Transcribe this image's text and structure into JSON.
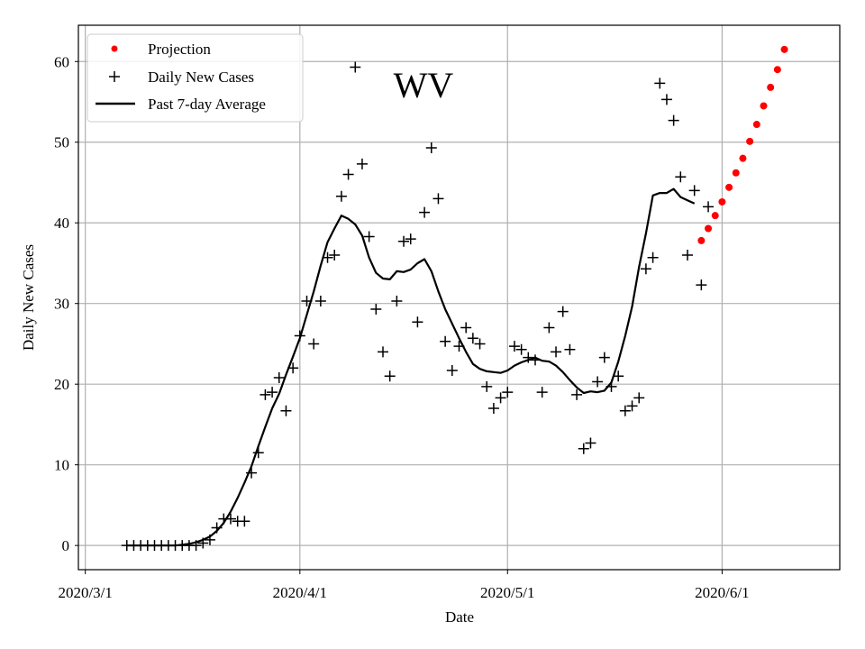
{
  "chart_data": {
    "type": "line",
    "title": "WV",
    "xlabel": "Date",
    "ylabel": "Daily New Cases",
    "xlim": [
      -1,
      109
    ],
    "ylim": [
      -3,
      64.5
    ],
    "grid": true,
    "legend_position": "top-left",
    "x_ticks": [
      {
        "day": 0,
        "label": "2020/3/1"
      },
      {
        "day": 31,
        "label": "2020/4/1"
      },
      {
        "day": 61,
        "label": "2020/5/1"
      },
      {
        "day": 92,
        "label": "2020/6/1"
      }
    ],
    "y_ticks": [
      0,
      10,
      20,
      30,
      40,
      50,
      60
    ],
    "legend": [
      "Projection",
      "Daily New Cases",
      "Past 7-day Average"
    ],
    "colors": {
      "projection": "#ff0000",
      "daily": "#000000",
      "average": "#000000"
    },
    "series": [
      {
        "name": "Daily New Cases",
        "marker": "plus",
        "points": [
          [
            6,
            0
          ],
          [
            7,
            0
          ],
          [
            8,
            0
          ],
          [
            9,
            0
          ],
          [
            10,
            0
          ],
          [
            11,
            0
          ],
          [
            12,
            0
          ],
          [
            13,
            0
          ],
          [
            14,
            0
          ],
          [
            15,
            0
          ],
          [
            16,
            0
          ],
          [
            17,
            0.3
          ],
          [
            18,
            0.7
          ],
          [
            19,
            2.2
          ],
          [
            20,
            3.3
          ],
          [
            21,
            3.3
          ],
          [
            22,
            3.0
          ],
          [
            23,
            3.0
          ],
          [
            24,
            9.0
          ],
          [
            25,
            11.5
          ],
          [
            26,
            18.7
          ],
          [
            27,
            19.0
          ],
          [
            28,
            20.8
          ],
          [
            29,
            16.7
          ],
          [
            30,
            22.0
          ],
          [
            31,
            26.0
          ],
          [
            32,
            30.3
          ],
          [
            33,
            25.0
          ],
          [
            34,
            30.3
          ],
          [
            35,
            35.7
          ],
          [
            36,
            36.0
          ],
          [
            37,
            43.3
          ],
          [
            38,
            46.0
          ],
          [
            39,
            59.3
          ],
          [
            40,
            47.3
          ],
          [
            41,
            38.3
          ],
          [
            42,
            29.3
          ],
          [
            43,
            24.0
          ],
          [
            44,
            21.0
          ],
          [
            45,
            30.3
          ],
          [
            46,
            37.7
          ],
          [
            47,
            38.0
          ],
          [
            48,
            27.7
          ],
          [
            49,
            41.3
          ],
          [
            50,
            49.3
          ],
          [
            51,
            43.0
          ],
          [
            52,
            25.3
          ],
          [
            53,
            21.7
          ],
          [
            54,
            24.7
          ],
          [
            55,
            27.0
          ],
          [
            56,
            25.7
          ],
          [
            57,
            25.0
          ],
          [
            58,
            19.7
          ],
          [
            59,
            17.0
          ],
          [
            60,
            18.3
          ],
          [
            61,
            19.0
          ],
          [
            62,
            24.7
          ],
          [
            63,
            24.3
          ],
          [
            64,
            23.3
          ],
          [
            65,
            23.0
          ],
          [
            66,
            19.0
          ],
          [
            67,
            27.0
          ],
          [
            68,
            24.0
          ],
          [
            69,
            29.0
          ],
          [
            70,
            24.3
          ],
          [
            71,
            18.7
          ],
          [
            72,
            12.0
          ],
          [
            73,
            12.7
          ],
          [
            74,
            20.3
          ],
          [
            75,
            23.3
          ],
          [
            76,
            19.7
          ],
          [
            77,
            21.0
          ],
          [
            78,
            16.7
          ],
          [
            79,
            17.3
          ],
          [
            80,
            18.3
          ],
          [
            81,
            34.3
          ],
          [
            82,
            35.7
          ],
          [
            83,
            57.3
          ],
          [
            84,
            55.3
          ],
          [
            85,
            52.7
          ],
          [
            86,
            45.7
          ],
          [
            87,
            36.0
          ],
          [
            88,
            44.0
          ],
          [
            89,
            32.3
          ],
          [
            90,
            42.0
          ]
        ]
      },
      {
        "name": "Past 7-day Average",
        "marker": "line",
        "points": [
          [
            6,
            0
          ],
          [
            7,
            0
          ],
          [
            8,
            0
          ],
          [
            9,
            0
          ],
          [
            10,
            0
          ],
          [
            11,
            0
          ],
          [
            12,
            0
          ],
          [
            13,
            0
          ],
          [
            14,
            0.1
          ],
          [
            15,
            0.2
          ],
          [
            16,
            0.4
          ],
          [
            17,
            0.7
          ],
          [
            18,
            1.1
          ],
          [
            19,
            1.8
          ],
          [
            20,
            2.8
          ],
          [
            21,
            4.2
          ],
          [
            22,
            5.9
          ],
          [
            23,
            7.8
          ],
          [
            24,
            9.8
          ],
          [
            25,
            12.3
          ],
          [
            26,
            14.7
          ],
          [
            27,
            17.0
          ],
          [
            28,
            18.8
          ],
          [
            29,
            21.2
          ],
          [
            30,
            23.4
          ],
          [
            31,
            25.7
          ],
          [
            32,
            28.6
          ],
          [
            33,
            31.5
          ],
          [
            34,
            34.7
          ],
          [
            35,
            37.6
          ],
          [
            36,
            39.3
          ],
          [
            37,
            40.9
          ],
          [
            38,
            40.5
          ],
          [
            39,
            39.8
          ],
          [
            40,
            38.4
          ],
          [
            41,
            35.7
          ],
          [
            42,
            33.8
          ],
          [
            43,
            33.1
          ],
          [
            44,
            33.0
          ],
          [
            45,
            34.0
          ],
          [
            46,
            33.9
          ],
          [
            47,
            34.2
          ],
          [
            48,
            35.0
          ],
          [
            49,
            35.5
          ],
          [
            50,
            34.0
          ],
          [
            51,
            31.5
          ],
          [
            52,
            29.3
          ],
          [
            53,
            27.5
          ],
          [
            54,
            25.7
          ],
          [
            55,
            24.0
          ],
          [
            56,
            22.5
          ],
          [
            57,
            21.9
          ],
          [
            58,
            21.6
          ],
          [
            59,
            21.5
          ],
          [
            60,
            21.4
          ],
          [
            61,
            21.7
          ],
          [
            62,
            22.3
          ],
          [
            63,
            22.7
          ],
          [
            64,
            23.0
          ],
          [
            65,
            23.3
          ],
          [
            66,
            22.9
          ],
          [
            67,
            22.8
          ],
          [
            68,
            22.3
          ],
          [
            69,
            21.5
          ],
          [
            70,
            20.5
          ],
          [
            71,
            19.6
          ],
          [
            72,
            18.9
          ],
          [
            73,
            19.1
          ],
          [
            74,
            19.0
          ],
          [
            75,
            19.2
          ],
          [
            76,
            20.2
          ],
          [
            77,
            22.8
          ],
          [
            78,
            26.0
          ],
          [
            79,
            29.6
          ],
          [
            80,
            34.5
          ],
          [
            81,
            38.7
          ],
          [
            82,
            43.4
          ],
          [
            83,
            43.7
          ],
          [
            84,
            43.7
          ],
          [
            85,
            44.2
          ],
          [
            86,
            43.2
          ],
          [
            87,
            42.8
          ],
          [
            88,
            42.4
          ]
        ]
      },
      {
        "name": "Projection",
        "marker": "dot",
        "points": [
          [
            89,
            37.8
          ],
          [
            90,
            39.3
          ],
          [
            91,
            40.9
          ],
          [
            92,
            42.6
          ],
          [
            93,
            44.4
          ],
          [
            94,
            46.2
          ],
          [
            95,
            48.0
          ],
          [
            96,
            50.1
          ],
          [
            97,
            52.2
          ],
          [
            98,
            54.5
          ],
          [
            99,
            56.8
          ],
          [
            100,
            59.0
          ],
          [
            101,
            61.5
          ]
        ]
      }
    ]
  }
}
